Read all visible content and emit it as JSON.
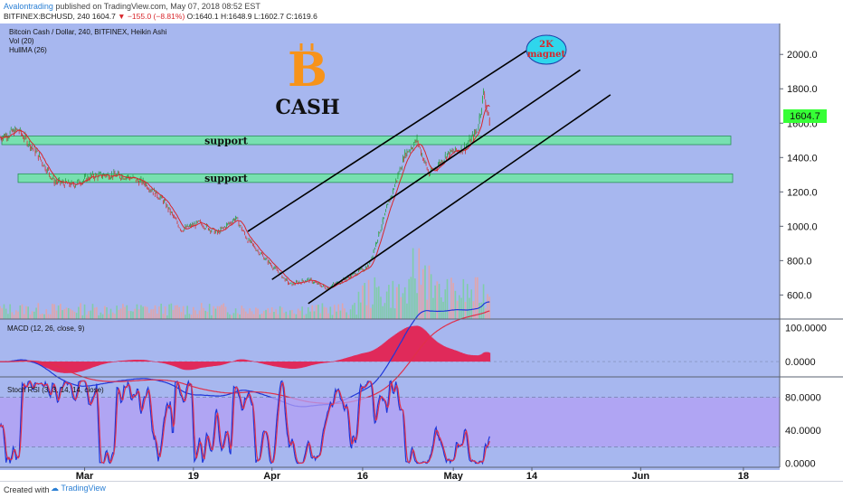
{
  "header": {
    "author": "Avalontrading",
    "published": "published on TradingView.com, May 07, 2018 08:52 EST",
    "symbol": "BITFINEX:BCHUSD, 240",
    "last": "1604.7",
    "change": "▼ −155.0 (−8.81%)",
    "ohlc": "O:1640.1 H:1648.9 L:1602.7 C:1619.6"
  },
  "legend": {
    "title": "Bitcoin Cash / Dollar, 240, BITFINEX, Heikin Ashi",
    "vol": "Vol (20)",
    "hull": "HullMA (26)",
    "macd": "MACD (12, 26, close, 9)",
    "rsi": "Stoch RSI (3, 3, 14, 14, close)"
  },
  "annotations": {
    "logo_letter": "B",
    "cash": "CASH",
    "support_upper": "support",
    "support_lower": "support",
    "magnet_line1": "2K",
    "magnet_line2": "magnet"
  },
  "footer": {
    "created_with": "Created with",
    "brand": "TradingView"
  },
  "colors": {
    "background": "#a7b7ef",
    "support_band": "#6fe8a4",
    "logo": "#f7931a",
    "magnet": "#2fd6ec",
    "price_tag": "#36ff36",
    "hull": "#d8262b",
    "macd": "#1f36d9",
    "signal": "#e0304a",
    "rsi_band": "#b39ff4"
  },
  "chart_data": {
    "type": "candlestick",
    "title": "Bitcoin Cash / Dollar, 240, BITFINEX, Heikin Ashi",
    "x_ticks": [
      "Mar",
      "19",
      "Apr",
      "16",
      "May",
      "14",
      "Jun",
      "18"
    ],
    "price_axis": {
      "ticks": [
        600.0,
        800.0,
        1000.0,
        1200.0,
        1400.0,
        1600.0,
        1800.0,
        2000.0
      ],
      "labels": [
        "600.0",
        "800.0",
        "1000.0",
        "1200.0",
        "1400.0",
        "1600.0",
        "1800.0",
        "2000.0"
      ],
      "range": [
        460,
        2180
      ]
    },
    "last_price": 1604.7,
    "price_path": [
      {
        "date": "2018-02-15",
        "price": 1520
      },
      {
        "date": "2018-02-18",
        "price": 1560
      },
      {
        "date": "2018-02-21",
        "price": 1430
      },
      {
        "date": "2018-02-24",
        "price": 1260
      },
      {
        "date": "2018-02-27",
        "price": 1240
      },
      {
        "date": "2018-03-02",
        "price": 1290
      },
      {
        "date": "2018-03-05",
        "price": 1300
      },
      {
        "date": "2018-03-08",
        "price": 1290
      },
      {
        "date": "2018-03-11",
        "price": 1250
      },
      {
        "date": "2018-03-14",
        "price": 1150
      },
      {
        "date": "2018-03-17",
        "price": 980
      },
      {
        "date": "2018-03-20",
        "price": 1020
      },
      {
        "date": "2018-03-23",
        "price": 960
      },
      {
        "date": "2018-03-26",
        "price": 1050
      },
      {
        "date": "2018-03-28",
        "price": 920
      },
      {
        "date": "2018-04-01",
        "price": 770
      },
      {
        "date": "2018-04-04",
        "price": 660
      },
      {
        "date": "2018-04-07",
        "price": 690
      },
      {
        "date": "2018-04-10",
        "price": 640
      },
      {
        "date": "2018-04-13",
        "price": 690
      },
      {
        "date": "2018-04-17",
        "price": 770
      },
      {
        "date": "2018-04-20",
        "price": 1100
      },
      {
        "date": "2018-04-23",
        "price": 1420
      },
      {
        "date": "2018-04-25",
        "price": 1500
      },
      {
        "date": "2018-04-27",
        "price": 1300
      },
      {
        "date": "2018-04-30",
        "price": 1420
      },
      {
        "date": "2018-05-03",
        "price": 1460
      },
      {
        "date": "2018-05-05",
        "price": 1560
      },
      {
        "date": "2018-05-06",
        "price": 1780
      },
      {
        "date": "2018-05-07",
        "price": 1605
      }
    ],
    "support_zones": [
      {
        "label": "support",
        "low": 1475,
        "high": 1525
      },
      {
        "label": "support",
        "low": 1255,
        "high": 1305
      }
    ],
    "channel_lines": [
      {
        "from": {
          "date": "2018-03-28",
          "price": 970
        },
        "to": {
          "date": "2018-05-17",
          "price": 2110
        }
      },
      {
        "from": {
          "date": "2018-04-01",
          "price": 690
        },
        "to": {
          "date": "2018-05-22",
          "price": 1910
        }
      },
      {
        "from": {
          "date": "2018-04-07",
          "price": 550
        },
        "to": {
          "date": "2018-05-27",
          "price": 1765
        }
      }
    ],
    "volume": {
      "label": "Vol (20)"
    },
    "macd": {
      "label": "MACD (12, 26, close, 9)",
      "ticks": [
        0.0,
        100.0
      ],
      "tick_labels": [
        "0.0000",
        "100.0000"
      ],
      "range": [
        -45,
        125
      ]
    },
    "stoch_rsi": {
      "label": "Stoch RSI (3, 3, 14, 14, close)",
      "ticks": [
        0.0,
        40.0,
        80.0
      ],
      "tick_labels": [
        "0.0000",
        "40.0000",
        "80.0000"
      ],
      "range": [
        -5,
        105
      ],
      "band": [
        20,
        80
      ]
    }
  }
}
